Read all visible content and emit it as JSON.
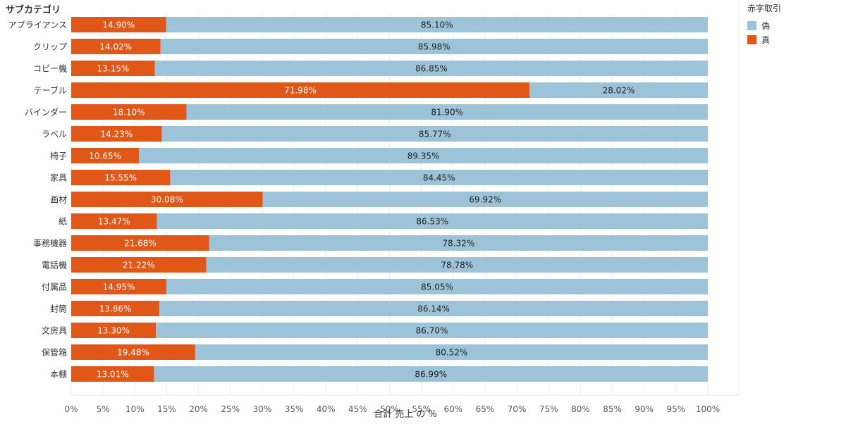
{
  "chart_data": {
    "type": "bar",
    "orientation": "horizontal",
    "stacked": true,
    "row_header": "サブカテゴリ",
    "xlabel": "合計 売上 の %",
    "xlim": [
      0,
      100
    ],
    "xticks": [
      "0%",
      "5%",
      "10%",
      "15%",
      "20%",
      "25%",
      "30%",
      "35%",
      "40%",
      "45%",
      "50%",
      "55%",
      "60%",
      "65%",
      "70%",
      "75%",
      "80%",
      "85%",
      "90%",
      "95%",
      "100%"
    ],
    "legend": {
      "title": "赤字取引",
      "placement": "top-right"
    },
    "categories": [
      "アプライアンス",
      "クリップ",
      "コピー機",
      "テーブル",
      "バインダー",
      "ラベル",
      "椅子",
      "家具",
      "画材",
      "紙",
      "事務機器",
      "電話機",
      "付属品",
      "封筒",
      "文房具",
      "保管箱",
      "本棚"
    ],
    "series": [
      {
        "name": "真",
        "color": "#e15718",
        "values": [
          14.9,
          14.02,
          13.15,
          71.98,
          18.1,
          14.23,
          10.65,
          15.55,
          30.08,
          13.47,
          21.68,
          21.22,
          14.95,
          13.86,
          13.3,
          19.48,
          13.01
        ],
        "labels": [
          "14.90%",
          "14.02%",
          "13.15%",
          "71.98%",
          "18.10%",
          "14.23%",
          "10.65%",
          "15.55%",
          "30.08%",
          "13.47%",
          "21.68%",
          "21.22%",
          "14.95%",
          "13.86%",
          "13.30%",
          "19.48%",
          "13.01%"
        ]
      },
      {
        "name": "偽",
        "color": "#9dc3d8",
        "values": [
          85.1,
          85.98,
          86.85,
          28.02,
          81.9,
          85.77,
          89.35,
          84.45,
          69.92,
          86.53,
          78.32,
          78.78,
          85.05,
          86.14,
          86.7,
          80.52,
          86.99
        ],
        "labels": [
          "85.10%",
          "85.98%",
          "86.85%",
          "28.02%",
          "81.90%",
          "85.77%",
          "89.35%",
          "84.45%",
          "69.92%",
          "86.53%",
          "78.32%",
          "78.78%",
          "85.05%",
          "86.14%",
          "86.70%",
          "80.52%",
          "86.99%"
        ]
      }
    ],
    "legend_order": [
      "偽",
      "真"
    ],
    "grid": true
  }
}
